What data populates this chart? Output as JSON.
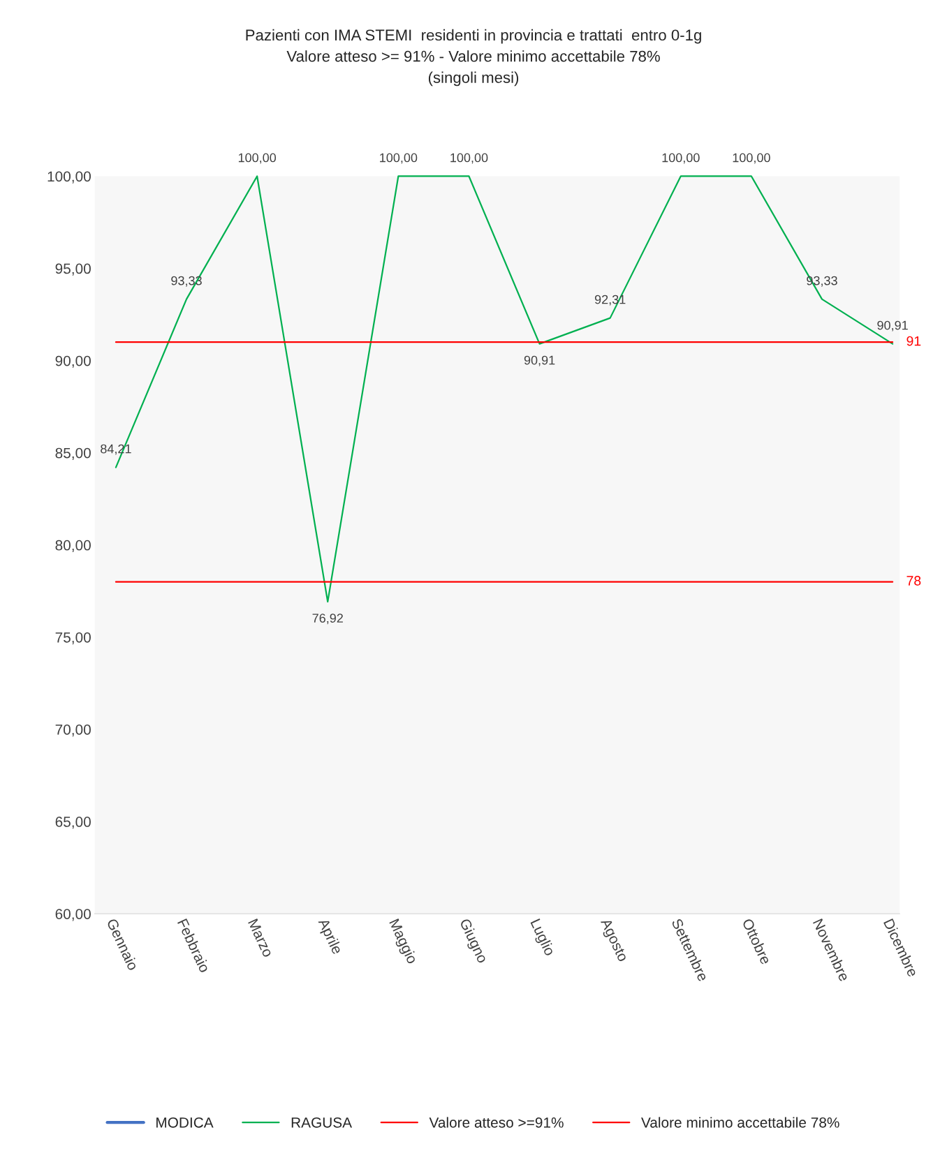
{
  "chart_data": {
    "type": "line",
    "title": "Pazienti con IMA STEMI  residenti in provincia e trattati  entro 0-1g\nValore atteso >= 91% - Valore minimo accettabile 78%\n(singoli mesi)",
    "categories": [
      "Gennaio",
      "Febbraio",
      "Marzo",
      "Aprile",
      "Maggio",
      "Giugno",
      "Luglio",
      "Agosto",
      "Settembre",
      "Ottobre",
      "Novembre",
      "Dicembre"
    ],
    "series": [
      {
        "name": "MODICA",
        "color": "#4472c4",
        "values": [
          null,
          null,
          null,
          null,
          null,
          null,
          null,
          null,
          null,
          null,
          null,
          null
        ]
      },
      {
        "name": "RAGUSA",
        "color": "#00b050",
        "values": [
          84.21,
          93.33,
          100,
          76.92,
          100,
          100,
          90.91,
          92.31,
          100,
          100,
          93.33,
          90.91
        ],
        "value_labels": [
          "84,21",
          "93,33",
          "100,00",
          "76,92",
          "100,00",
          "100,00",
          "90,91",
          "92,31",
          "100,00",
          "100,00",
          "93,33",
          "90,91"
        ]
      },
      {
        "name": "Valore atteso >=91%",
        "color": "#ff0000",
        "values": [
          91,
          91,
          91,
          91,
          91,
          91,
          91,
          91,
          91,
          91,
          91,
          91
        ]
      },
      {
        "name": "Valore minimo accettabile 78%",
        "color": "#ff0000",
        "values": [
          78,
          78,
          78,
          78,
          78,
          78,
          78,
          78,
          78,
          78,
          78,
          78
        ]
      }
    ],
    "annotations": [
      {
        "text": "91",
        "x": "Dicembre",
        "y": 91
      },
      {
        "text": "78",
        "x": "Dicembre",
        "y": 78
      }
    ],
    "ylim": [
      60,
      100
    ],
    "yticks": [
      {
        "value": 60,
        "label": "60,00"
      },
      {
        "value": 65,
        "label": "65,00"
      },
      {
        "value": 70,
        "label": "70,00"
      },
      {
        "value": 75,
        "label": "75,00"
      },
      {
        "value": 80,
        "label": "80,00"
      },
      {
        "value": 85,
        "label": "85,00"
      },
      {
        "value": 90,
        "label": "90,00"
      },
      {
        "value": 95,
        "label": "95,00"
      },
      {
        "value": 100,
        "label": "100,00"
      }
    ],
    "grid": false,
    "legend": "bottom",
    "marker": "none",
    "line_style": "solid"
  }
}
